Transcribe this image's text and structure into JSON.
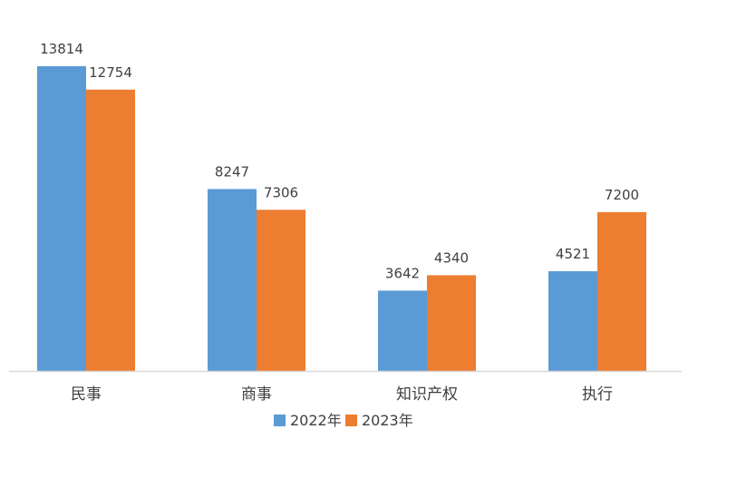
{
  "chart_data": {
    "type": "bar",
    "categories": [
      "民事",
      "商事",
      "知识产权",
      "执行"
    ],
    "series": [
      {
        "name": "2022年",
        "values": [
          13814,
          8247,
          3642,
          4521
        ],
        "color": "#5B9BD5"
      },
      {
        "name": "2023年",
        "values": [
          12754,
          7306,
          4340,
          7200
        ],
        "color": "#ED7D31"
      }
    ],
    "data_labels": true,
    "grid": false,
    "legend_position": "bottom",
    "title": "",
    "xlabel": "",
    "ylabel": ""
  }
}
